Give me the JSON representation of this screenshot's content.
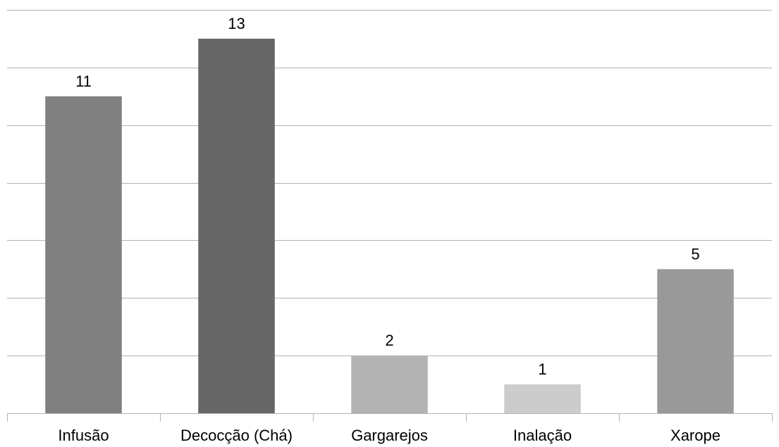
{
  "chart_data": {
    "type": "bar",
    "categories": [
      "Infusão",
      "Decocção (Chá)",
      "Gargarejos",
      "Inalação",
      "Xarope"
    ],
    "values": [
      11,
      13,
      2,
      1,
      5
    ],
    "data_labels": [
      "11",
      "13",
      "2",
      "1",
      "5"
    ],
    "bar_colors": [
      "#808080",
      "#666666",
      "#b3b3b3",
      "#cccccc",
      "#999999"
    ],
    "ylim": [
      0,
      14
    ],
    "y_grid_step": 2,
    "grid": true,
    "legend": "none"
  }
}
